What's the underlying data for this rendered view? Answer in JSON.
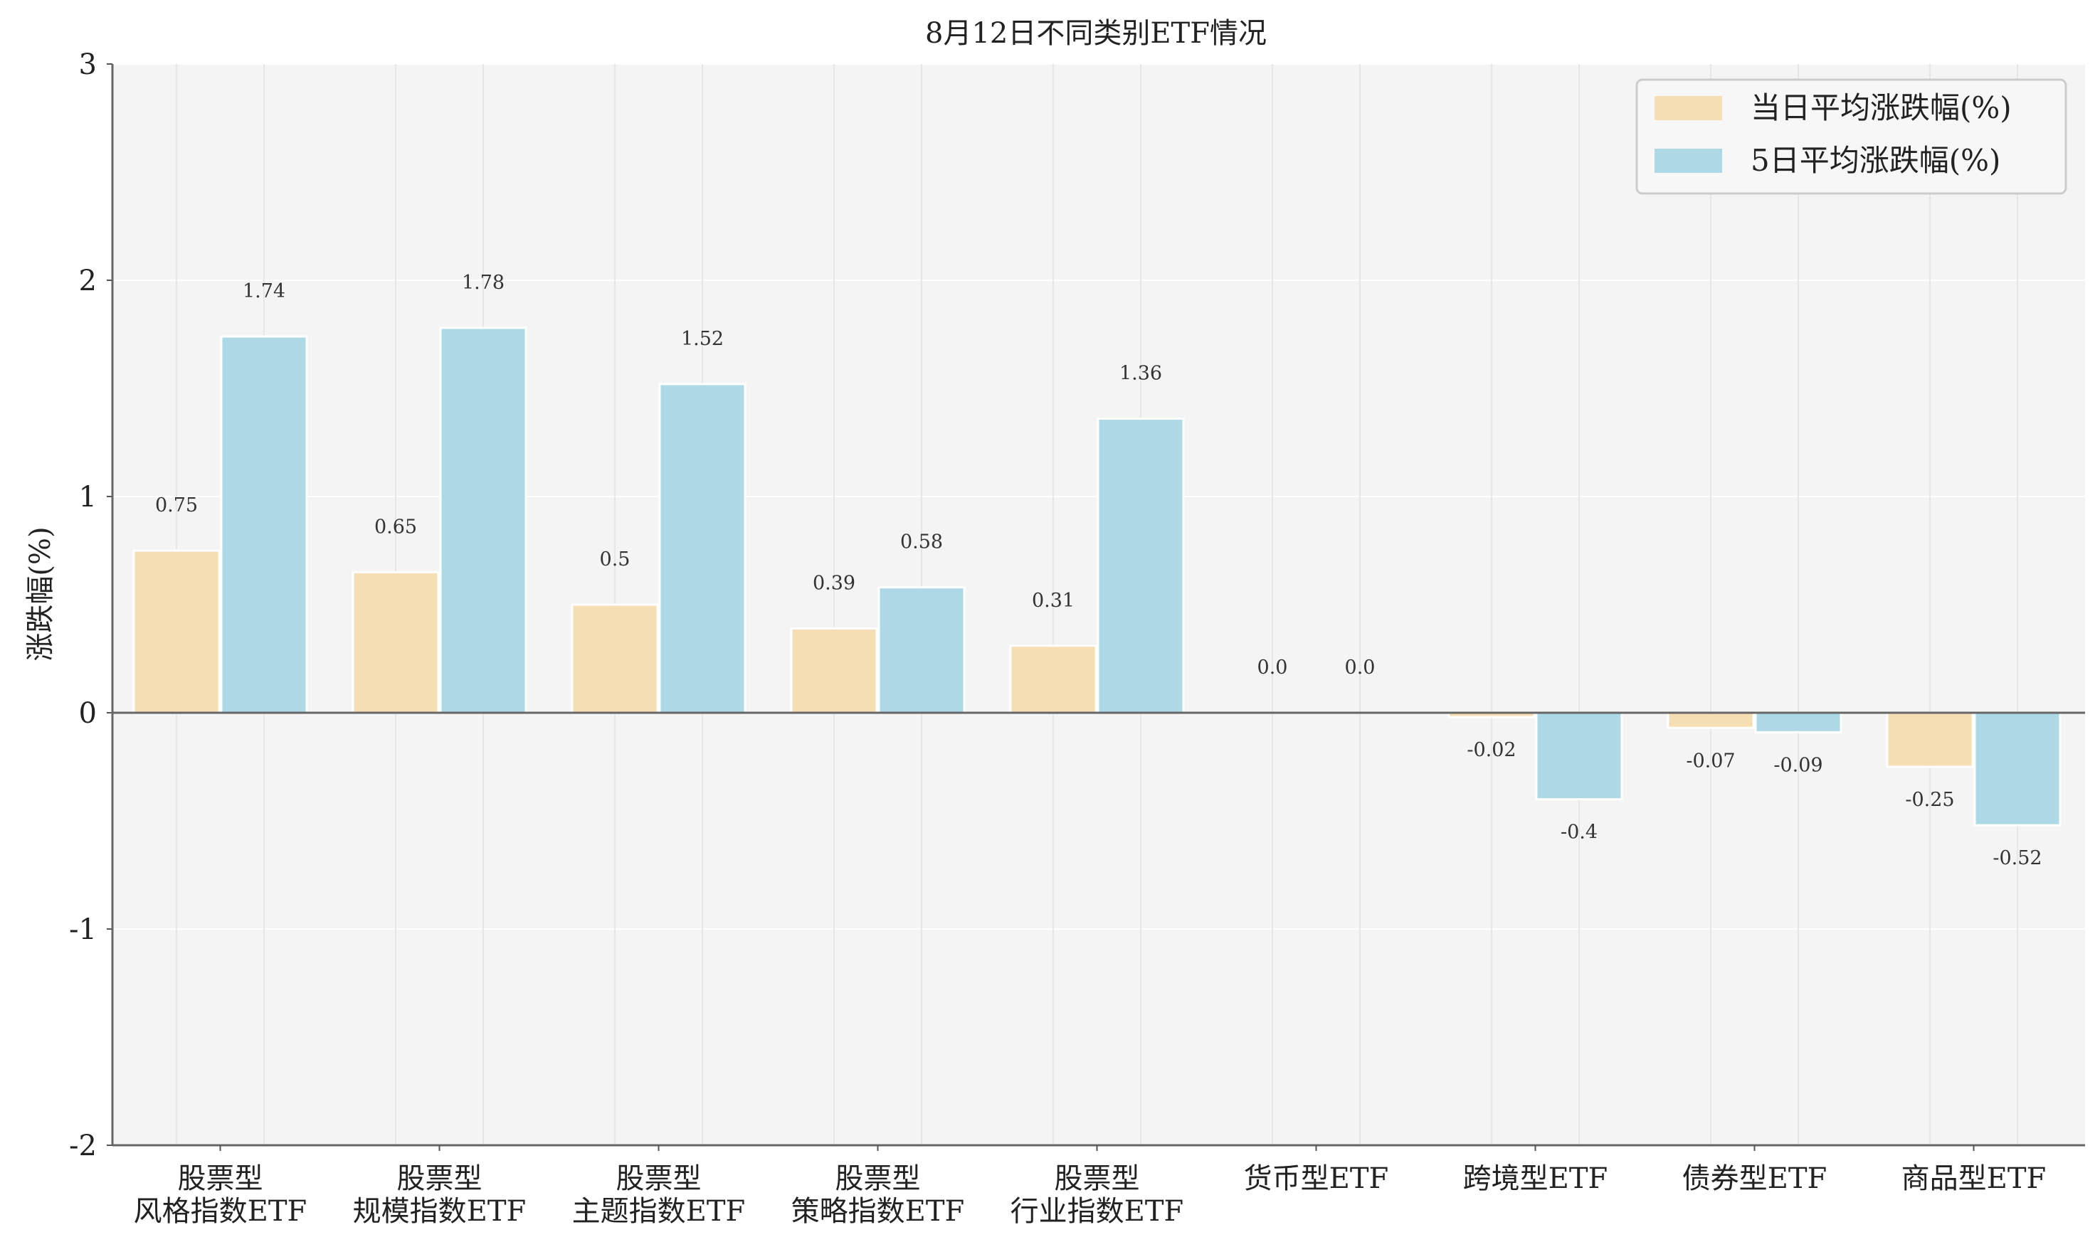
{
  "chart_data": {
    "type": "bar",
    "title": "8月12日不同类别ETF情况",
    "ylabel": "涨跌幅(%)",
    "xlabel": "",
    "ylim": [
      -2,
      3
    ],
    "yticks": [
      -2,
      -1,
      0,
      1,
      2,
      3
    ],
    "ytick_labels": [
      "-2",
      "-1",
      "0",
      "1",
      "2",
      "3"
    ],
    "grid": true,
    "legend_position": "top-right",
    "categories": [
      [
        "股票型",
        "风格指数ETF"
      ],
      [
        "股票型",
        "规模指数ETF"
      ],
      [
        "股票型",
        "主题指数ETF"
      ],
      [
        "股票型",
        "策略指数ETF"
      ],
      [
        "股票型",
        "行业指数ETF"
      ],
      [
        "货币型ETF"
      ],
      [
        "跨境型ETF"
      ],
      [
        "债券型ETF"
      ],
      [
        "商品型ETF"
      ]
    ],
    "series": [
      {
        "name": "当日平均涨跌幅(%)",
        "color": "#F5DEB3",
        "values": [
          0.75,
          0.65,
          0.5,
          0.39,
          0.31,
          0.0,
          -0.02,
          -0.07,
          -0.25
        ],
        "labels": [
          "0.75",
          "0.65",
          "0.5",
          "0.39",
          "0.31",
          "0.0",
          "-0.02",
          "-0.07",
          "-0.25"
        ]
      },
      {
        "name": "5日平均涨跌幅(%)",
        "color": "#ADD8E6",
        "values": [
          1.74,
          1.78,
          1.52,
          0.58,
          1.36,
          0.0,
          -0.4,
          -0.09,
          -0.52
        ],
        "labels": [
          "1.74",
          "1.78",
          "1.52",
          "0.58",
          "1.36",
          "0.0",
          "-0.4",
          "-0.09",
          "-0.52"
        ]
      }
    ]
  }
}
